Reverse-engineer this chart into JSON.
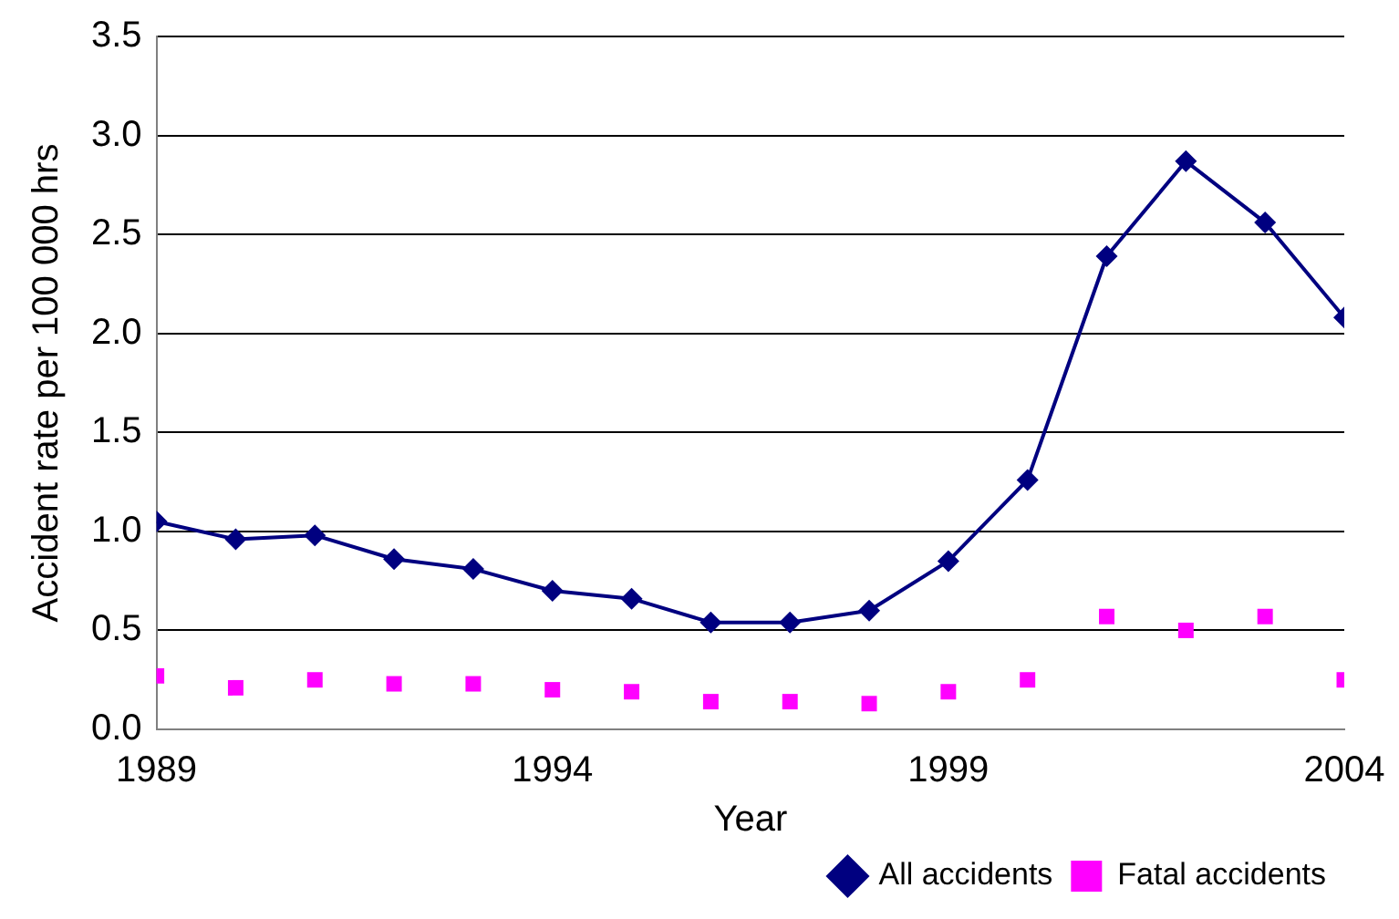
{
  "chart_data": {
    "type": "line",
    "xlabel": "Year",
    "ylabel": "Accident rate per 100 000 hrs",
    "x": [
      1989,
      1990,
      1991,
      1992,
      1993,
      1994,
      1995,
      1996,
      1997,
      1998,
      1999,
      2000,
      2001,
      2002,
      2003,
      2004
    ],
    "series": [
      {
        "name": "All accidents",
        "marker": "diamond",
        "color": "#000080",
        "values": [
          1.05,
          0.96,
          0.98,
          0.86,
          0.81,
          0.7,
          0.66,
          0.54,
          0.54,
          0.6,
          0.85,
          1.26,
          2.39,
          2.87,
          2.56,
          2.08
        ]
      },
      {
        "name": "Fatal accidents",
        "type": "scatter",
        "marker": "square",
        "color": "#ff00ff",
        "values": [
          0.27,
          0.21,
          0.25,
          0.23,
          0.23,
          0.2,
          0.19,
          0.14,
          0.14,
          0.13,
          0.19,
          0.25,
          0.57,
          0.5,
          0.57,
          0.25
        ]
      }
    ],
    "xlim": [
      1989,
      2004
    ],
    "xticks": [
      {
        "value": 1989,
        "label": "1989"
      },
      {
        "value": 1994,
        "label": "1994"
      },
      {
        "value": 1999,
        "label": "1999"
      },
      {
        "value": 2004,
        "label": "2004"
      }
    ],
    "ylim": [
      0,
      3.5
    ],
    "yticks": [
      {
        "value": 0,
        "label": "0.0"
      },
      0.5,
      {
        "value": 1,
        "label": "1.0"
      },
      1.5,
      {
        "value": 2,
        "label": "2.0"
      },
      2.5,
      {
        "value": 3,
        "label": "3.0"
      },
      3.5
    ],
    "grid": "y",
    "legend": "bottom right"
  }
}
